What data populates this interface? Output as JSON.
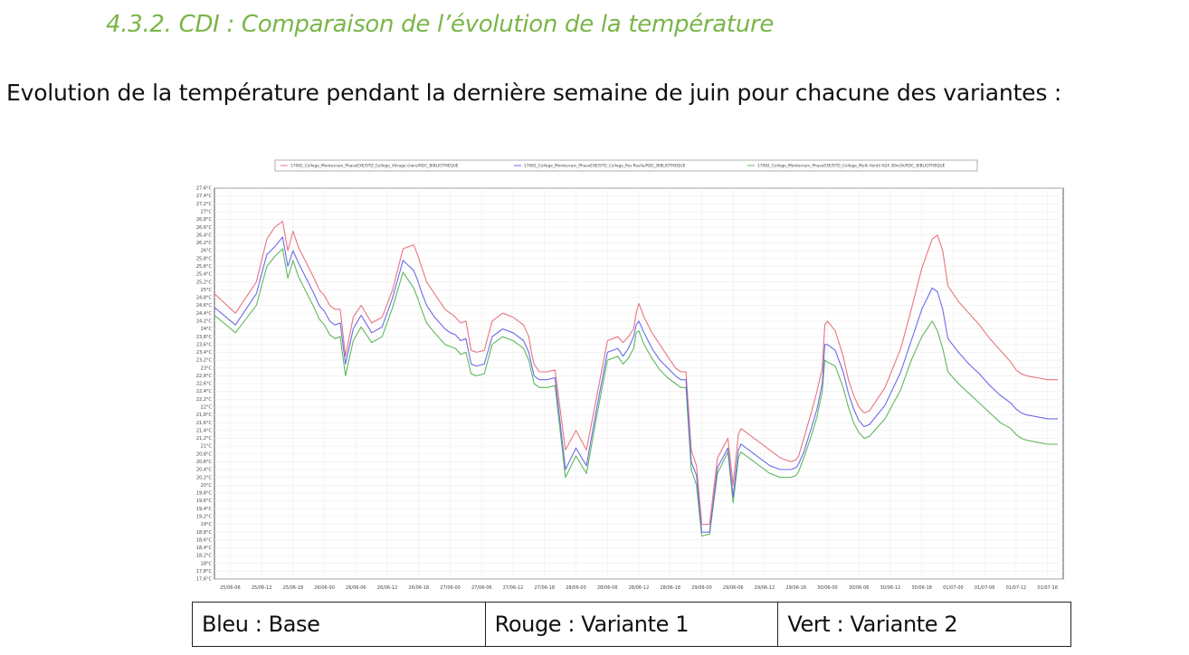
{
  "heading": "4.3.2. CDI : Comparaison de l’évolution de la température",
  "intro": "Evolution de la température pendant la dernière semaine de juin pour chacune des variantes :",
  "legend_table": [
    "Bleu : Base",
    "Rouge : Variante 1",
    "Vert : Variante 2"
  ],
  "colors": {
    "heading": "#7ab648",
    "red": "#e8757d",
    "blue": "#6b6bea",
    "green": "#5fb85f"
  },
  "chart_data": {
    "type": "line",
    "title": "",
    "xlabel": "",
    "ylabel": "",
    "ylim": [
      17.6,
      27.6
    ],
    "grid": true,
    "legend_placement": "top",
    "yticks": [
      "27,6°C",
      "27,4°C",
      "27,2°C",
      "27°C",
      "26,8°C",
      "26,6°C",
      "26,4°C",
      "26,2°C",
      "26°C",
      "25,8°C",
      "25,6°C",
      "25,4°C",
      "25,2°C",
      "25°C",
      "24,8°C",
      "24,6°C",
      "24,4°C",
      "24,2°C",
      "24°C",
      "23,8°C",
      "23,6°C",
      "23,4°C",
      "23,2°C",
      "23°C",
      "22,8°C",
      "22,6°C",
      "22,4°C",
      "22,2°C",
      "22°C",
      "21,8°C",
      "21,6°C",
      "21,4°C",
      "21,2°C",
      "21°C",
      "20,8°C",
      "20,6°C",
      "20,4°C",
      "20,2°C",
      "20°C",
      "19,8°C",
      "19,6°C",
      "19,4°C",
      "19,2°C",
      "19°C",
      "18,8°C",
      "18,6°C",
      "18,4°C",
      "18,2°C",
      "18°C",
      "17,8°C",
      "17,6°C"
    ],
    "xticks": [
      "25/06-06",
      "25/06-12",
      "25/06-18",
      "26/06-00",
      "26/06-06",
      "26/06-12",
      "26/06-18",
      "27/06-00",
      "27/06-06",
      "27/06-12",
      "27/06-18",
      "28/06-00",
      "28/06-06",
      "28/06-12",
      "28/06-18",
      "29/06-00",
      "29/06-06",
      "29/06-12",
      "29/06-18",
      "30/06-00",
      "30/06-06",
      "30/06-12",
      "30/06-18",
      "01/07-00",
      "01/07-06",
      "01/07-12",
      "01/07-18"
    ],
    "x": [
      0,
      8,
      16,
      20,
      23,
      26,
      28,
      30,
      32,
      35,
      38,
      40,
      42,
      44,
      46,
      48,
      50,
      53,
      56,
      60,
      64,
      68,
      72,
      76,
      77.5,
      79,
      81,
      84,
      86,
      88,
      90,
      92,
      94,
      96,
      98,
      100,
      103,
      106,
      110,
      114,
      118,
      120,
      121,
      122,
      124,
      127,
      130,
      134,
      138,
      142,
      146,
      150,
      154,
      156,
      158,
      160,
      161,
      162,
      164,
      167,
      170,
      173,
      176,
      178,
      180,
      182,
      184,
      186,
      189,
      192,
      196,
      198,
      200,
      201,
      202,
      204,
      208,
      212,
      216,
      220,
      222,
      223,
      225,
      228,
      230,
      232,
      233,
      234,
      237,
      240,
      242,
      244,
      246,
      248,
      250,
      256,
      262,
      266,
      270,
      274,
      276,
      278,
      280,
      284,
      288,
      292,
      296,
      300,
      304,
      306,
      308,
      310,
      314,
      318,
      320,
      322
    ],
    "series": [
      {
        "name": "17062_College_Montevrain_PhaseEXE/STD_College_Vitrage claire/RDC_BIBLIOTHEQUE",
        "color": "red",
        "values": [
          24.9,
          24.4,
          25.2,
          26.3,
          26.6,
          26.75,
          26.0,
          26.5,
          26.1,
          25.7,
          25.3,
          25.0,
          24.85,
          24.6,
          24.5,
          24.5,
          23.3,
          24.3,
          24.6,
          24.15,
          24.3,
          25.0,
          26.05,
          26.15,
          25.9,
          25.6,
          25.2,
          24.9,
          24.7,
          24.5,
          24.4,
          24.3,
          24.15,
          24.2,
          23.45,
          23.4,
          23.45,
          24.2,
          24.4,
          24.3,
          24.1,
          23.8,
          23.4,
          23.1,
          22.9,
          22.9,
          22.95,
          20.9,
          21.4,
          20.9,
          22.3,
          23.7,
          23.8,
          23.65,
          23.8,
          24.0,
          24.4,
          24.65,
          24.3,
          23.9,
          23.6,
          23.3,
          23.0,
          22.9,
          22.9,
          20.9,
          20.5,
          19.0,
          19.0,
          20.7,
          21.2,
          20.0,
          21.3,
          21.45,
          21.4,
          21.3,
          21.1,
          20.9,
          20.7,
          20.6,
          20.65,
          20.75,
          21.2,
          21.9,
          22.4,
          23.0,
          24.1,
          24.2,
          23.95,
          23.3,
          22.7,
          22.3,
          22.0,
          21.85,
          21.9,
          22.5,
          23.5,
          24.5,
          25.55,
          26.3,
          26.4,
          26.0,
          25.1,
          24.7,
          24.4,
          24.1,
          23.75,
          23.45,
          23.15,
          22.95,
          22.85,
          22.8,
          22.75,
          22.7,
          22.7,
          22.7
        ]
      },
      {
        "name": "17062_College_Montevrain_PhaseEXE/STD_College_Pas Reslle/RDC_BIBLIOTHEQUE",
        "color": "blue",
        "values": [
          24.55,
          24.1,
          24.9,
          25.9,
          26.1,
          26.35,
          25.6,
          26.0,
          25.7,
          25.3,
          24.9,
          24.6,
          24.45,
          24.2,
          24.1,
          24.15,
          23.1,
          24.0,
          24.35,
          23.9,
          24.05,
          24.8,
          25.75,
          25.5,
          25.25,
          24.95,
          24.6,
          24.3,
          24.15,
          24.0,
          23.9,
          23.85,
          23.7,
          23.75,
          23.1,
          23.05,
          23.1,
          23.8,
          24.0,
          23.9,
          23.7,
          23.4,
          23.1,
          22.8,
          22.7,
          22.7,
          22.75,
          20.4,
          20.95,
          20.5,
          22.0,
          23.4,
          23.5,
          23.3,
          23.5,
          23.8,
          24.1,
          24.2,
          23.9,
          23.5,
          23.2,
          23.0,
          22.8,
          22.7,
          22.7,
          20.6,
          20.25,
          18.8,
          18.8,
          20.45,
          20.95,
          19.7,
          20.9,
          21.05,
          21.0,
          20.9,
          20.7,
          20.5,
          20.4,
          20.4,
          20.45,
          20.55,
          20.85,
          21.5,
          21.95,
          22.6,
          23.6,
          23.6,
          23.45,
          22.9,
          22.35,
          21.95,
          21.65,
          21.5,
          21.55,
          22.05,
          22.9,
          23.7,
          24.5,
          25.05,
          24.95,
          24.5,
          23.75,
          23.4,
          23.1,
          22.85,
          22.55,
          22.3,
          22.1,
          21.95,
          21.85,
          21.8,
          21.75,
          21.7,
          21.7,
          21.7
        ]
      },
      {
        "name": "17062_College_Montevrain_PhaseEXE/STD_College_Multi Ventil H24 30m3h/RDC_BIBLIOTHEQUE",
        "color": "green",
        "values": [
          24.35,
          23.9,
          24.6,
          25.6,
          25.85,
          26.05,
          25.3,
          25.75,
          25.35,
          24.95,
          24.55,
          24.25,
          24.1,
          23.85,
          23.75,
          23.8,
          22.8,
          23.7,
          24.05,
          23.65,
          23.8,
          24.55,
          25.45,
          25.05,
          24.8,
          24.5,
          24.15,
          23.9,
          23.75,
          23.6,
          23.55,
          23.5,
          23.35,
          23.4,
          22.85,
          22.8,
          22.85,
          23.6,
          23.8,
          23.7,
          23.5,
          23.2,
          22.9,
          22.6,
          22.5,
          22.5,
          22.55,
          20.2,
          20.75,
          20.3,
          21.8,
          23.2,
          23.3,
          23.1,
          23.25,
          23.5,
          23.9,
          23.95,
          23.6,
          23.25,
          22.95,
          22.75,
          22.6,
          22.5,
          22.5,
          20.4,
          20.0,
          18.7,
          18.75,
          20.3,
          20.85,
          19.55,
          20.7,
          20.85,
          20.8,
          20.7,
          20.5,
          20.3,
          20.2,
          20.2,
          20.25,
          20.35,
          20.7,
          21.3,
          21.75,
          22.4,
          23.2,
          23.15,
          23.05,
          22.5,
          22.0,
          21.6,
          21.35,
          21.2,
          21.25,
          21.7,
          22.45,
          23.2,
          23.8,
          24.2,
          23.95,
          23.5,
          22.9,
          22.6,
          22.35,
          22.1,
          21.85,
          21.6,
          21.45,
          21.3,
          21.2,
          21.15,
          21.1,
          21.05,
          21.05,
          21.05
        ]
      }
    ]
  }
}
